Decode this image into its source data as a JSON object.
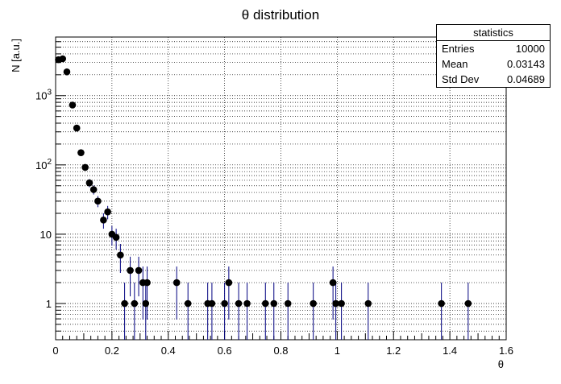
{
  "chart_data": {
    "type": "scatter",
    "title": "θ distribution",
    "xlabel": "θ",
    "ylabel": "N [a.u.]",
    "xlim": [
      0,
      1.6
    ],
    "ylim": [
      0.3,
      7000
    ],
    "yscale": "log",
    "grid": true,
    "x_ticks": [
      0,
      0.2,
      0.4,
      0.6,
      0.8,
      1,
      1.2,
      1.4,
      1.6
    ],
    "x_tick_labels": [
      "0",
      "0.2",
      "0.4",
      "0.6",
      "0.8",
      "1",
      "1.2",
      "1.4",
      "1.6"
    ],
    "y_tick_labels": [
      "1",
      "10",
      "10²",
      "10³"
    ],
    "series": [
      {
        "marker": "filled-circle",
        "marker_color": "#000000",
        "error_bar_color": "#000080",
        "points": [
          {
            "x": 0.01,
            "y": 3300
          },
          {
            "x": 0.025,
            "y": 3400
          },
          {
            "x": 0.04,
            "y": 2200
          },
          {
            "x": 0.06,
            "y": 730
          },
          {
            "x": 0.075,
            "y": 340
          },
          {
            "x": 0.09,
            "y": 150
          },
          {
            "x": 0.105,
            "y": 92
          },
          {
            "x": 0.12,
            "y": 55
          },
          {
            "x": 0.135,
            "y": 44
          },
          {
            "x": 0.15,
            "y": 30
          },
          {
            "x": 0.17,
            "y": 16
          },
          {
            "x": 0.185,
            "y": 21
          },
          {
            "x": 0.2,
            "y": 10
          },
          {
            "x": 0.215,
            "y": 9
          },
          {
            "x": 0.23,
            "y": 5
          },
          {
            "x": 0.245,
            "y": 1
          },
          {
            "x": 0.265,
            "y": 3
          },
          {
            "x": 0.28,
            "y": 1
          },
          {
            "x": 0.295,
            "y": 3
          },
          {
            "x": 0.31,
            "y": 2
          },
          {
            "x": 0.32,
            "y": 1
          },
          {
            "x": 0.325,
            "y": 2
          },
          {
            "x": 0.43,
            "y": 2
          },
          {
            "x": 0.47,
            "y": 1
          },
          {
            "x": 0.54,
            "y": 1
          },
          {
            "x": 0.555,
            "y": 1
          },
          {
            "x": 0.6,
            "y": 1
          },
          {
            "x": 0.615,
            "y": 2
          },
          {
            "x": 0.65,
            "y": 1
          },
          {
            "x": 0.68,
            "y": 1
          },
          {
            "x": 0.745,
            "y": 1
          },
          {
            "x": 0.775,
            "y": 1
          },
          {
            "x": 0.825,
            "y": 1
          },
          {
            "x": 0.915,
            "y": 1
          },
          {
            "x": 0.985,
            "y": 2
          },
          {
            "x": 0.995,
            "y": 1
          },
          {
            "x": 1.015,
            "y": 1
          },
          {
            "x": 1.11,
            "y": 1
          },
          {
            "x": 1.37,
            "y": 1
          },
          {
            "x": 1.465,
            "y": 1
          }
        ]
      }
    ]
  },
  "stats": {
    "title": "statistics",
    "rows": [
      {
        "label": "Entries",
        "value": "10000"
      },
      {
        "label": "Mean",
        "value": "0.03143"
      },
      {
        "label": "Std Dev",
        "value": "0.04689"
      }
    ]
  }
}
